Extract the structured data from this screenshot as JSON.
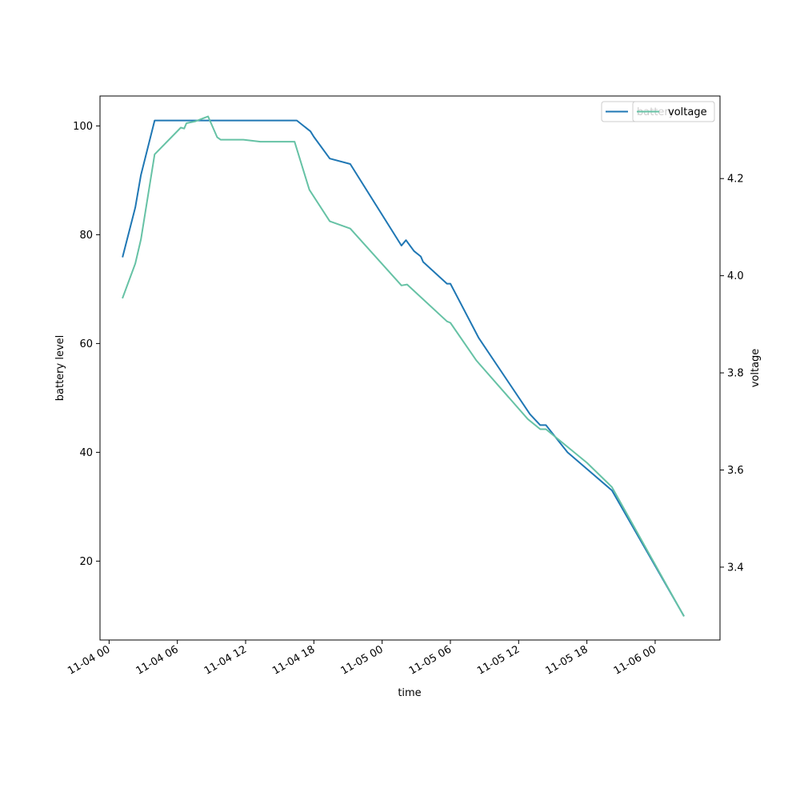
{
  "chart_data": {
    "type": "line",
    "xlabel": "time",
    "ylabel_left": "battery level",
    "ylabel_right": "voltage",
    "x_range": [
      "2024-11-03T23:12",
      "2024-11-06T05:42"
    ],
    "ylim_left": [
      5.5,
      105.5
    ],
    "ylim_right": [
      3.25,
      4.37
    ],
    "x_ticks": [
      {
        "label": "11-04 00",
        "t": "2024-11-04T00:00"
      },
      {
        "label": "11-04 06",
        "t": "2024-11-04T06:00"
      },
      {
        "label": "11-04 12",
        "t": "2024-11-04T12:00"
      },
      {
        "label": "11-04 18",
        "t": "2024-11-04T18:00"
      },
      {
        "label": "11-05 00",
        "t": "2024-11-05T00:00"
      },
      {
        "label": "11-05 06",
        "t": "2024-11-05T06:00"
      },
      {
        "label": "11-05 12",
        "t": "2024-11-05T12:00"
      },
      {
        "label": "11-05 18",
        "t": "2024-11-05T18:00"
      },
      {
        "label": "11-06 00",
        "t": "2024-11-06T00:00"
      }
    ],
    "y_ticks_left": [
      20,
      40,
      60,
      80,
      100
    ],
    "y_ticks_right": [
      3.4,
      3.6,
      3.8,
      4.0,
      4.2
    ],
    "grid": false,
    "legend_position": "top-right",
    "series": [
      {
        "name": "battery",
        "axis": "left",
        "color": "#1f77b4",
        "points": [
          [
            "2024-11-04T01:12",
            76
          ],
          [
            "2024-11-04T02:18",
            85
          ],
          [
            "2024-11-04T02:48",
            91
          ],
          [
            "2024-11-04T04:00",
            101
          ],
          [
            "2024-11-04T16:30",
            101
          ],
          [
            "2024-11-04T17:42",
            99
          ],
          [
            "2024-11-04T18:00",
            98
          ],
          [
            "2024-11-04T19:24",
            94
          ],
          [
            "2024-11-04T21:12",
            93
          ],
          [
            "2024-11-05T01:42",
            78
          ],
          [
            "2024-11-05T02:06",
            79
          ],
          [
            "2024-11-05T02:48",
            77
          ],
          [
            "2024-11-05T03:24",
            76
          ],
          [
            "2024-11-05T03:36",
            75
          ],
          [
            "2024-11-05T05:42",
            71
          ],
          [
            "2024-11-05T06:00",
            71
          ],
          [
            "2024-11-05T08:30",
            61
          ],
          [
            "2024-11-05T13:00",
            47
          ],
          [
            "2024-11-05T13:54",
            45
          ],
          [
            "2024-11-05T14:24",
            45
          ],
          [
            "2024-11-05T16:18",
            40
          ],
          [
            "2024-11-05T20:12",
            33
          ],
          [
            "2024-11-06T02:30",
            10
          ]
        ]
      },
      {
        "name": "voltage",
        "axis": "right",
        "color": "#66c2a5",
        "points": [
          [
            "2024-11-04T01:12",
            3.955
          ],
          [
            "2024-11-04T02:18",
            4.025
          ],
          [
            "2024-11-04T02:48",
            4.075
          ],
          [
            "2024-11-04T04:00",
            4.25
          ],
          [
            "2024-11-04T06:18",
            4.305
          ],
          [
            "2024-11-04T06:36",
            4.303
          ],
          [
            "2024-11-04T06:48",
            4.314
          ],
          [
            "2024-11-04T07:36",
            4.318
          ],
          [
            "2024-11-04T08:42",
            4.328
          ],
          [
            "2024-11-04T09:30",
            4.285
          ],
          [
            "2024-11-04T09:48",
            4.28
          ],
          [
            "2024-11-04T11:48",
            4.28
          ],
          [
            "2024-11-04T13:18",
            4.276
          ],
          [
            "2024-11-04T16:18",
            4.276
          ],
          [
            "2024-11-04T17:36",
            4.177
          ],
          [
            "2024-11-04T19:24",
            4.112
          ],
          [
            "2024-11-04T21:12",
            4.097
          ],
          [
            "2024-11-05T01:42",
            3.98
          ],
          [
            "2024-11-05T02:12",
            3.982
          ],
          [
            "2024-11-05T05:42",
            3.906
          ],
          [
            "2024-11-05T06:00",
            3.903
          ],
          [
            "2024-11-05T08:18",
            3.825
          ],
          [
            "2024-11-05T12:48",
            3.705
          ],
          [
            "2024-11-05T13:54",
            3.684
          ],
          [
            "2024-11-05T14:24",
            3.684
          ],
          [
            "2024-11-05T18:00",
            3.615
          ],
          [
            "2024-11-05T20:12",
            3.565
          ],
          [
            "2024-11-06T02:30",
            3.3
          ]
        ]
      }
    ]
  }
}
